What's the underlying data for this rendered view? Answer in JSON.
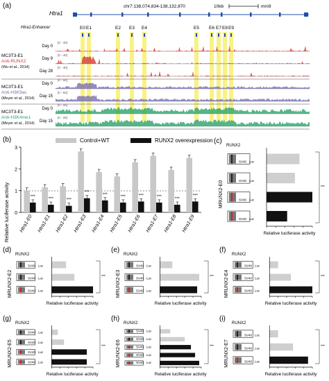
{
  "panel_a": {
    "label": "(a)",
    "coords": "chr7:138,074,834-138,132,870",
    "scale": "10kb",
    "assembly": "mm9",
    "gene": "Htra1",
    "enhancer_label": "Htra1-Enhancer",
    "enhancers": [
      "E0",
      "E1",
      "E2",
      "E3",
      "E4",
      "E5",
      "E6",
      "E7",
      "E8",
      "E9"
    ],
    "groups": [
      {
        "cell": "MC3T3-E1",
        "mark": "Anti-RUNX2",
        "cite": "(Wu et al., 2014)",
        "mark_color": "#d23a3a",
        "tracks": [
          {
            "day": "Day 0",
            "range": "[0 - 40]"
          },
          {
            "day": "Day 9",
            "range": "[0 - 40]"
          },
          {
            "day": "Day 28",
            "range": "[0 - 40]"
          }
        ]
      },
      {
        "cell": "MC3T3-E1",
        "mark": "Anti-H3K9ac",
        "cite": "(Meyer et al., 2014)",
        "mark_color": "#7a6fb0",
        "tracks": [
          {
            "day": "Day 0",
            "range": "[0 - 50]"
          },
          {
            "day": "Day 15",
            "range": "[0 - 50]"
          }
        ]
      },
      {
        "cell": "MC3T3-E1",
        "mark": "Anti-H3K4me1",
        "cite": "(Meyer et al., 2014)",
        "mark_color": "#2aa36b",
        "tracks": [
          {
            "day": "Day 0",
            "range": "[0 - 25]"
          },
          {
            "day": "Day 15",
            "range": "[0 - 25]"
          }
        ]
      }
    ]
  },
  "panel_b": {
    "label": "(b)",
    "chart_data": {
      "type": "bar",
      "ylabel": "Relative luciferase activity",
      "ylim": [
        0,
        3
      ],
      "yticks": [
        "0",
        "1",
        "2",
        "3"
      ],
      "categories": [
        "Htra1-E0",
        "Htra1-E1",
        "Htra1-E2",
        "Htra1-E3",
        "Htra1-E4",
        "Htra1-E5",
        "Htra1-E6",
        "Htra1-E7",
        "Htra1-E8",
        "Htra1-E9"
      ],
      "series": [
        {
          "name": "Control+WT",
          "color": "#c8c8c8",
          "values": [
            1.0,
            1.15,
            1.2,
            2.8,
            1.85,
            1.65,
            2.3,
            2.6,
            1.95,
            2.5
          ]
        },
        {
          "name": "RUNX2 overexpression",
          "color": "#111111",
          "values": [
            0.45,
            0.35,
            0.3,
            0.65,
            0.55,
            0.45,
            0.5,
            0.45,
            0.35,
            0.5
          ]
        }
      ],
      "significance": [
        "***",
        "***",
        "***",
        "***",
        "***",
        "***",
        "***",
        "***",
        "***",
        "***"
      ]
    }
  },
  "small_panels": [
    {
      "label": "(c)",
      "ylabel": "MRUNX2-E0",
      "runx2": "RUNX2",
      "xlabel": "Relative luciferase activity",
      "bars": [
        0.72,
        0.62,
        1.0,
        0.45
      ],
      "reds": [
        0,
        0,
        1,
        1
      ]
    },
    {
      "label": "(d)",
      "ylabel": "MRUNX2-E2",
      "runx2": "RUNX2",
      "xlabel": "Relative luciferase activity",
      "bars": [
        0.35,
        0.55,
        1.0
      ],
      "reds": [
        0,
        0,
        1
      ]
    },
    {
      "label": "(e)",
      "ylabel": "MRUNX2-E3",
      "runx2": "RUNX2",
      "xlabel": "Relative luciferase activity",
      "bars": [
        0.3,
        0.95,
        0.9
      ],
      "reds": [
        0,
        0,
        1
      ]
    },
    {
      "label": "(f)",
      "ylabel": "MRUNX2-E4",
      "runx2": "RUNX2",
      "xlabel": "Relative luciferase activity",
      "bars": [
        0.2,
        0.5,
        1.0
      ],
      "reds": [
        0,
        0,
        1
      ]
    },
    {
      "label": "(g)",
      "ylabel": "MRUNX2-E5",
      "runx2": "RUNX2",
      "xlabel": "Relative luciferase activity",
      "bars": [
        0.15,
        0.3,
        0.85,
        0.85
      ],
      "reds": [
        0,
        0,
        1,
        1
      ]
    },
    {
      "label": "(h)",
      "ylabel": "MRUNX2-E6",
      "runx2": "RUNX2",
      "xlabel": "Relative luciferase activity",
      "bars": [
        0.25,
        0.6,
        0.75,
        0.85,
        0.95
      ],
      "reds": [
        0,
        0,
        1,
        1,
        1
      ]
    },
    {
      "label": "(i)",
      "ylabel": "MRUNX2-E7",
      "runx2": "RUNX2",
      "xlabel": "Relative luciferase activity",
      "bars": [
        0.2,
        0.55,
        0.9
      ],
      "reds": [
        0,
        0,
        1
      ]
    }
  ]
}
